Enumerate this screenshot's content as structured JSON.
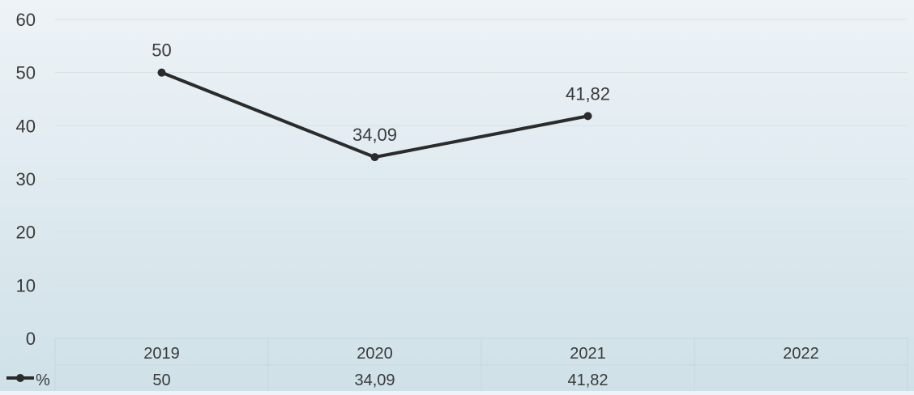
{
  "chart_data": {
    "type": "line",
    "categories": [
      "2019",
      "2020",
      "2021",
      "2022"
    ],
    "series": [
      {
        "name": "%",
        "values": [
          50,
          34.09,
          41.82,
          null
        ],
        "value_labels": [
          "50",
          "34,09",
          "41,82",
          ""
        ],
        "color": "#2b2b2b"
      }
    ],
    "y_ticks": [
      "0",
      "10",
      "20",
      "30",
      "40",
      "50",
      "60"
    ],
    "ylim": [
      0,
      60
    ],
    "grid": true,
    "data_table": true,
    "legend_position": "data-table-row"
  },
  "colors": {
    "line": "#2b2b2b",
    "gridline": "#d7e1e6",
    "table_border": "#c9d7de",
    "text": "#3a3a3a"
  }
}
